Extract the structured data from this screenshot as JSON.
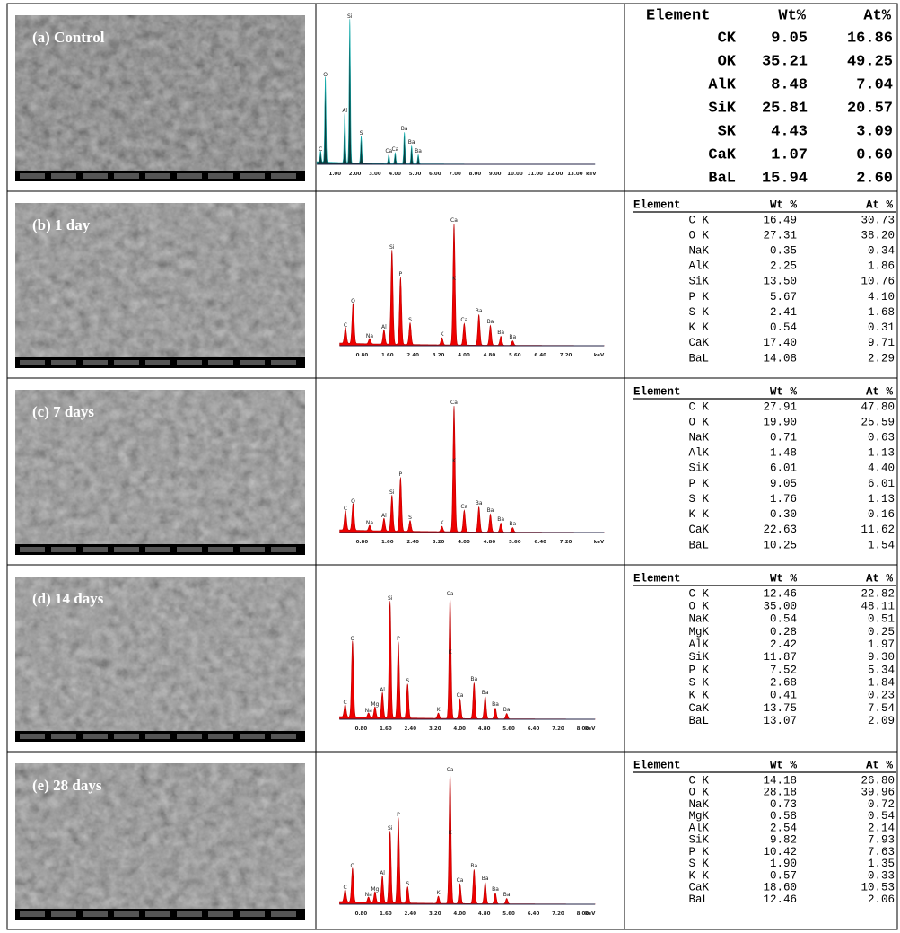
{
  "panels": [
    {
      "label": "(a) Control",
      "spectrum": {
        "peaks": [
          "C",
          "O",
          "Al",
          "Si",
          "S",
          "Ca",
          "Ca",
          "Ba",
          "Ba",
          "Ba"
        ],
        "ticks": [
          "1.00",
          "2.00",
          "3.00",
          "4.00",
          "5.00",
          "6.00",
          "7.00",
          "8.00",
          "9.00",
          "10.00",
          "11.00",
          "12.00",
          "13.00",
          "keV"
        ]
      },
      "table": {
        "header": [
          "Element",
          "Wt%",
          "At%"
        ],
        "rows": [
          [
            "CK",
            "9.05",
            "16.86"
          ],
          [
            "OK",
            "35.21",
            "49.25"
          ],
          [
            "AlK",
            "8.48",
            "7.04"
          ],
          [
            "SiK",
            "25.81",
            "20.57"
          ],
          [
            "SK",
            "4.43",
            "3.09"
          ],
          [
            "CaK",
            "1.07",
            "0.60"
          ],
          [
            "BaL",
            "15.94",
            "2.60"
          ]
        ]
      }
    },
    {
      "label": "(b) 1 day",
      "spectrum": {
        "peaks": [
          "C",
          "O",
          "Na",
          "Al",
          "Si",
          "P",
          "S",
          "K",
          "Ca",
          "K",
          "Ca",
          "Ba",
          "Ba",
          "Ba",
          "Ba"
        ],
        "ticks": [
          "0.80",
          "1.60",
          "2.40",
          "3.20",
          "4.00",
          "4.80",
          "5.60",
          "6.40",
          "7.20",
          "keV"
        ]
      },
      "table": {
        "header": [
          "Element",
          "Wt %",
          "At %"
        ],
        "rows": [
          [
            "C K",
            "16.49",
            "30.73"
          ],
          [
            "O K",
            "27.31",
            "38.20"
          ],
          [
            "NaK",
            "0.35",
            "0.34"
          ],
          [
            "AlK",
            "2.25",
            "1.86"
          ],
          [
            "SiK",
            "13.50",
            "10.76"
          ],
          [
            "P K",
            "5.67",
            "4.10"
          ],
          [
            "S K",
            "2.41",
            "1.68"
          ],
          [
            "K K",
            "0.54",
            "0.31"
          ],
          [
            "CaK",
            "17.40",
            "9.71"
          ],
          [
            "BaL",
            "14.08",
            "2.29"
          ]
        ]
      }
    },
    {
      "label": "(c) 7 days",
      "spectrum": {
        "peaks": [
          "C",
          "O",
          "Na",
          "Al",
          "Si",
          "P",
          "S",
          "K",
          "Ca",
          "K",
          "Ca",
          "Ba",
          "Ba",
          "Ba",
          "Ba"
        ],
        "ticks": [
          "0.80",
          "1.60",
          "2.40",
          "3.20",
          "4.00",
          "4.80",
          "5.60",
          "6.40",
          "7.20",
          "keV"
        ]
      },
      "table": {
        "header": [
          "Element",
          "Wt %",
          "At %"
        ],
        "rows": [
          [
            "C K",
            "27.91",
            "47.80"
          ],
          [
            "O K",
            "19.90",
            "25.59"
          ],
          [
            "NaK",
            "0.71",
            "0.63"
          ],
          [
            "AlK",
            "1.48",
            "1.13"
          ],
          [
            "SiK",
            "6.01",
            "4.40"
          ],
          [
            "P K",
            "9.05",
            "6.01"
          ],
          [
            "S K",
            "1.76",
            "1.13"
          ],
          [
            "K K",
            "0.30",
            "0.16"
          ],
          [
            "CaK",
            "22.63",
            "11.62"
          ],
          [
            "BaL",
            "10.25",
            "1.54"
          ]
        ]
      }
    },
    {
      "label": "(d) 14 days",
      "spectrum": {
        "peaks": [
          "C",
          "O",
          "Na",
          "Mg",
          "Al",
          "Si",
          "P",
          "S",
          "K",
          "Ca",
          "K",
          "Ca",
          "Ba",
          "Ba",
          "Ba",
          "Ba"
        ],
        "ticks": [
          "0.80",
          "1.60",
          "2.40",
          "3.20",
          "4.00",
          "4.80",
          "5.60",
          "6.40",
          "7.20",
          "8.00",
          "keV"
        ]
      },
      "table": {
        "header": [
          "Element",
          "Wt %",
          "At %"
        ],
        "rows": [
          [
            "C K",
            "12.46",
            "22.82"
          ],
          [
            "O K",
            "35.00",
            "48.11"
          ],
          [
            "NaK",
            "0.54",
            "0.51"
          ],
          [
            "MgK",
            "0.28",
            "0.25"
          ],
          [
            "AlK",
            "2.42",
            "1.97"
          ],
          [
            "SiK",
            "11.87",
            "9.30"
          ],
          [
            "P K",
            "7.52",
            "5.34"
          ],
          [
            "S K",
            "2.68",
            "1.84"
          ],
          [
            "K K",
            "0.41",
            "0.23"
          ],
          [
            "CaK",
            "13.75",
            "7.54"
          ],
          [
            "BaL",
            "13.07",
            "2.09"
          ]
        ]
      }
    },
    {
      "label": "(e) 28 days",
      "spectrum": {
        "peaks": [
          "C",
          "O",
          "Na",
          "Mg",
          "Al",
          "Si",
          "P",
          "S",
          "K",
          "Ca",
          "K",
          "Ca",
          "Ba",
          "Ba",
          "Ba",
          "Ba"
        ],
        "ticks": [
          "0.80",
          "1.60",
          "2.40",
          "3.20",
          "4.00",
          "4.80",
          "5.60",
          "6.40",
          "7.20",
          "8.00",
          "keV"
        ]
      },
      "table": {
        "header": [
          "Element",
          "Wt %",
          "At %"
        ],
        "rows": [
          [
            "C K",
            "14.18",
            "26.80"
          ],
          [
            "O K",
            "28.18",
            "39.96"
          ],
          [
            "NaK",
            "0.73",
            "0.72"
          ],
          [
            "MgK",
            "0.58",
            "0.54"
          ],
          [
            "AlK",
            "2.54",
            "2.14"
          ],
          [
            "SiK",
            "9.82",
            "7.93"
          ],
          [
            "P K",
            "10.42",
            "7.63"
          ],
          [
            "S K",
            "1.90",
            "1.35"
          ],
          [
            "K K",
            "0.57",
            "0.33"
          ],
          [
            "CaK",
            "18.60",
            "10.53"
          ],
          [
            "BaL",
            "12.46",
            "2.06"
          ]
        ]
      }
    }
  ]
}
